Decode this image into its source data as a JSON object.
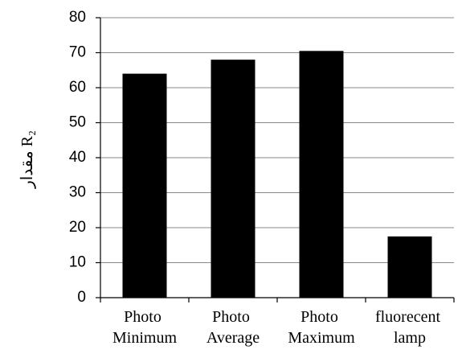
{
  "chart_data": {
    "type": "bar",
    "y_label": "مقدار R₂",
    "categories": [
      "Photo Minimum",
      "Photo Average",
      "Photo Maximum",
      "fluorecent lamp"
    ],
    "values": [
      64,
      68,
      70.5,
      17.5
    ],
    "color": "#000000",
    "ylim": [
      0,
      80
    ],
    "yticks": [
      0,
      10,
      20,
      30,
      40,
      50,
      60,
      70,
      80
    ],
    "grid": true
  }
}
